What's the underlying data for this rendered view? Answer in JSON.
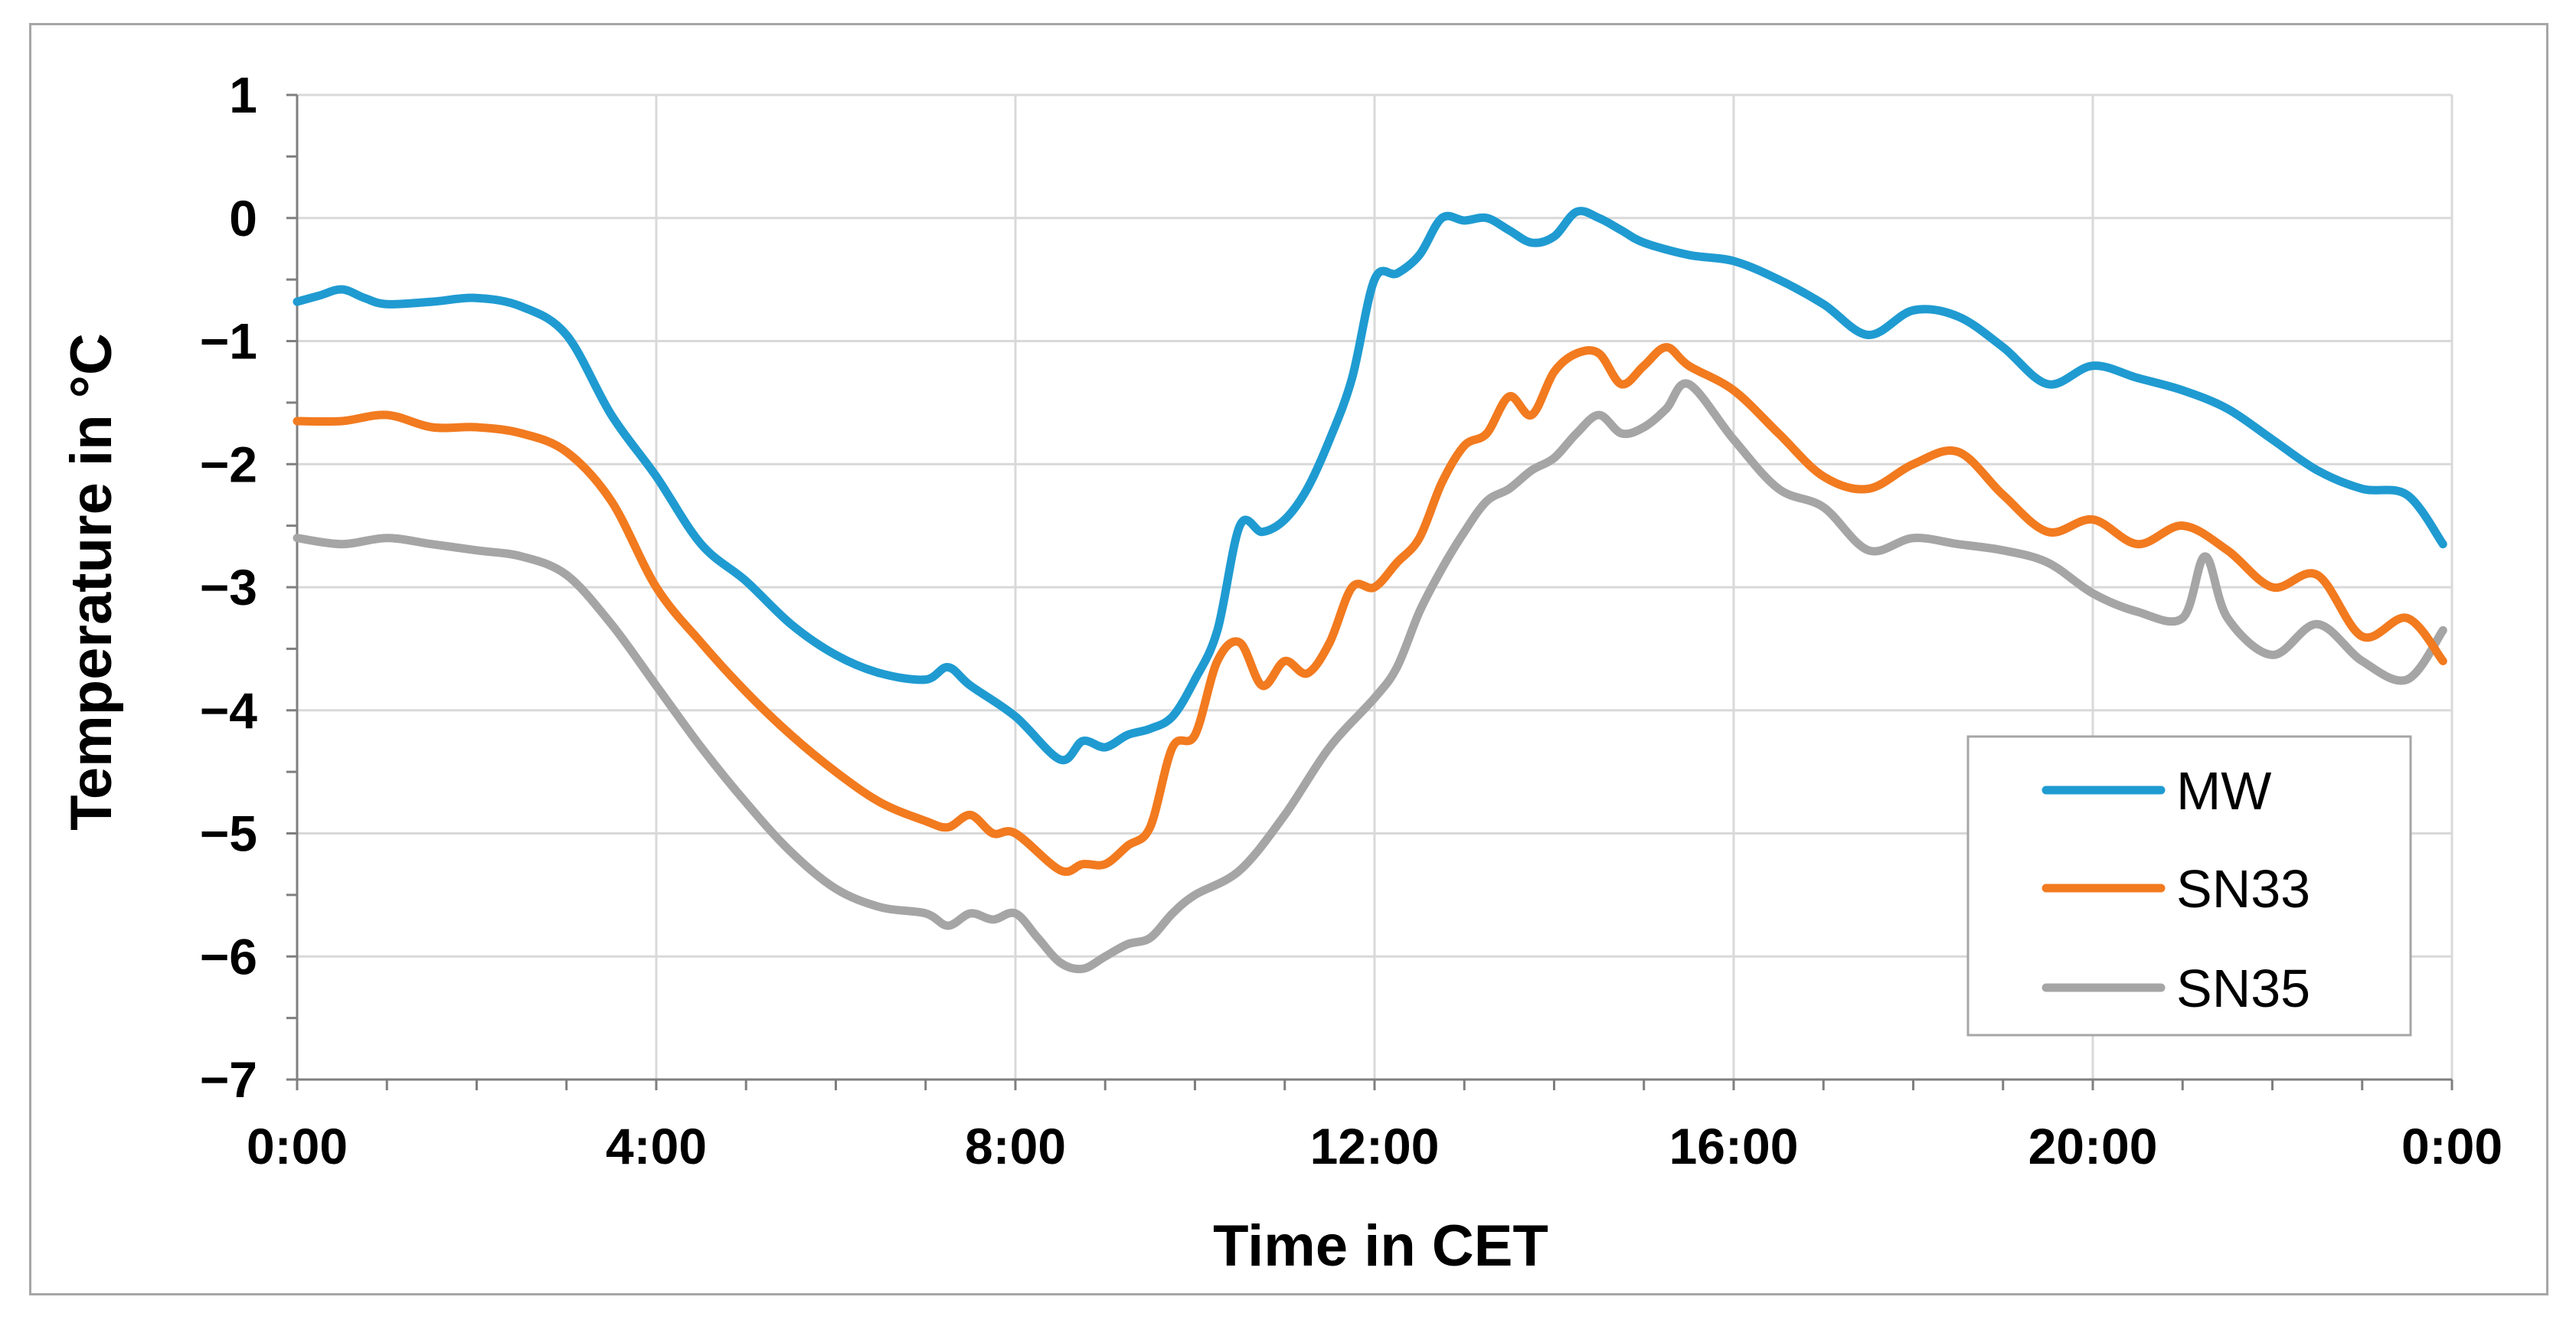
{
  "chart_data": {
    "type": "line",
    "xlabel": "Time in CET",
    "ylabel": "Temperature in °C",
    "x_tick_labels": [
      "0:00",
      "4:00",
      "8:00",
      "12:00",
      "16:00",
      "20:00",
      "0:00"
    ],
    "y_ticks": [
      1,
      0,
      -1,
      -2,
      -3,
      -4,
      -5,
      -6,
      -7
    ],
    "y_tick_labels": [
      "1",
      "0",
      "−1",
      "−2",
      "−3",
      "−4",
      "−5",
      "−6",
      "−7"
    ],
    "xlim": [
      0,
      24
    ],
    "ylim": [
      -7,
      1
    ],
    "grid": true,
    "legend_position": "bottom-right",
    "series": [
      {
        "name": "MW",
        "color": "#1f9bd1",
        "x": [
          0,
          0.25,
          0.5,
          0.75,
          1,
          1.5,
          2,
          2.5,
          3,
          3.5,
          4,
          4.5,
          5,
          5.5,
          6,
          6.5,
          7,
          7.25,
          7.5,
          8,
          8.5,
          8.75,
          9,
          9.25,
          9.5,
          9.75,
          10,
          10.25,
          10.5,
          10.75,
          11,
          11.25,
          11.5,
          11.75,
          12,
          12.25,
          12.5,
          12.75,
          13,
          13.25,
          13.5,
          13.75,
          14,
          14.25,
          14.5,
          14.75,
          15,
          15.5,
          16,
          16.5,
          17,
          17.5,
          18,
          18.5,
          19,
          19.5,
          20,
          20.5,
          21,
          21.5,
          22,
          22.5,
          23,
          23.5,
          23.9
        ],
        "y": [
          -0.68,
          -0.63,
          -0.58,
          -0.65,
          -0.7,
          -0.68,
          -0.65,
          -0.72,
          -0.95,
          -1.6,
          -2.1,
          -2.65,
          -2.95,
          -3.3,
          -3.55,
          -3.7,
          -3.75,
          -3.65,
          -3.8,
          -4.05,
          -4.4,
          -4.25,
          -4.3,
          -4.2,
          -4.15,
          -4.05,
          -3.75,
          -3.35,
          -2.5,
          -2.55,
          -2.45,
          -2.2,
          -1.8,
          -1.3,
          -0.5,
          -0.45,
          -0.3,
          0.0,
          -0.02,
          0.0,
          -0.1,
          -0.2,
          -0.15,
          0.05,
          0.0,
          -0.1,
          -0.2,
          -0.3,
          -0.35,
          -0.5,
          -0.7,
          -0.95,
          -0.75,
          -0.8,
          -1.05,
          -1.35,
          -1.2,
          -1.3,
          -1.4,
          -1.55,
          -1.8,
          -2.05,
          -2.2,
          -2.25,
          -2.65
        ]
      },
      {
        "name": "SN33",
        "color": "#f27a1f",
        "x": [
          0,
          0.5,
          1,
          1.5,
          2,
          2.5,
          3,
          3.5,
          4,
          4.5,
          5,
          5.5,
          6,
          6.5,
          7,
          7.25,
          7.5,
          7.75,
          8,
          8.5,
          8.75,
          9,
          9.25,
          9.5,
          9.75,
          10,
          10.25,
          10.5,
          10.75,
          11,
          11.25,
          11.5,
          11.75,
          12,
          12.25,
          12.5,
          12.75,
          13,
          13.25,
          13.5,
          13.75,
          14,
          14.25,
          14.5,
          14.75,
          15,
          15.25,
          15.5,
          16,
          16.5,
          17,
          17.5,
          18,
          18.5,
          19,
          19.5,
          20,
          20.5,
          21,
          21.5,
          22,
          22.5,
          23,
          23.5,
          23.9
        ],
        "y": [
          -1.65,
          -1.65,
          -1.6,
          -1.7,
          -1.7,
          -1.75,
          -1.9,
          -2.3,
          -3.0,
          -3.45,
          -3.85,
          -4.2,
          -4.5,
          -4.75,
          -4.9,
          -4.95,
          -4.85,
          -5.0,
          -5.0,
          -5.3,
          -5.25,
          -5.25,
          -5.1,
          -4.95,
          -4.3,
          -4.2,
          -3.6,
          -3.45,
          -3.8,
          -3.6,
          -3.7,
          -3.45,
          -3.0,
          -3.0,
          -2.8,
          -2.6,
          -2.15,
          -1.85,
          -1.75,
          -1.45,
          -1.6,
          -1.25,
          -1.1,
          -1.1,
          -1.35,
          -1.2,
          -1.05,
          -1.2,
          -1.4,
          -1.75,
          -2.1,
          -2.2,
          -2.0,
          -1.9,
          -2.25,
          -2.55,
          -2.45,
          -2.65,
          -2.5,
          -2.7,
          -3.0,
          -2.9,
          -3.4,
          -3.25,
          -3.6
        ]
      },
      {
        "name": "SN35",
        "color": "#a5a5a5",
        "x": [
          0,
          0.5,
          1,
          1.5,
          2,
          2.5,
          3,
          3.5,
          4,
          4.5,
          5,
          5.5,
          6,
          6.5,
          7,
          7.25,
          7.5,
          7.75,
          8,
          8.25,
          8.5,
          8.75,
          9,
          9.25,
          9.5,
          9.75,
          10,
          10.5,
          11,
          11.5,
          12,
          12.25,
          12.5,
          12.75,
          13,
          13.25,
          13.5,
          13.75,
          14,
          14.25,
          14.5,
          14.75,
          15,
          15.25,
          15.5,
          16,
          16.5,
          17,
          17.5,
          18,
          18.5,
          19,
          19.5,
          20,
          20.5,
          21,
          21.25,
          21.5,
          22,
          22.5,
          23,
          23.5,
          23.9
        ],
        "y": [
          -2.6,
          -2.65,
          -2.6,
          -2.65,
          -2.7,
          -2.75,
          -2.9,
          -3.3,
          -3.8,
          -4.3,
          -4.75,
          -5.15,
          -5.45,
          -5.6,
          -5.65,
          -5.75,
          -5.65,
          -5.7,
          -5.65,
          -5.85,
          -6.05,
          -6.1,
          -6.0,
          -5.9,
          -5.85,
          -5.65,
          -5.5,
          -5.3,
          -4.85,
          -4.3,
          -3.9,
          -3.65,
          -3.2,
          -2.85,
          -2.55,
          -2.3,
          -2.2,
          -2.05,
          -1.95,
          -1.75,
          -1.6,
          -1.75,
          -1.7,
          -1.55,
          -1.35,
          -1.8,
          -2.2,
          -2.35,
          -2.7,
          -2.6,
          -2.65,
          -2.7,
          -2.8,
          -3.05,
          -3.2,
          -3.25,
          -2.75,
          -3.25,
          -3.55,
          -3.3,
          -3.6,
          -3.75,
          -3.35
        ]
      }
    ]
  }
}
